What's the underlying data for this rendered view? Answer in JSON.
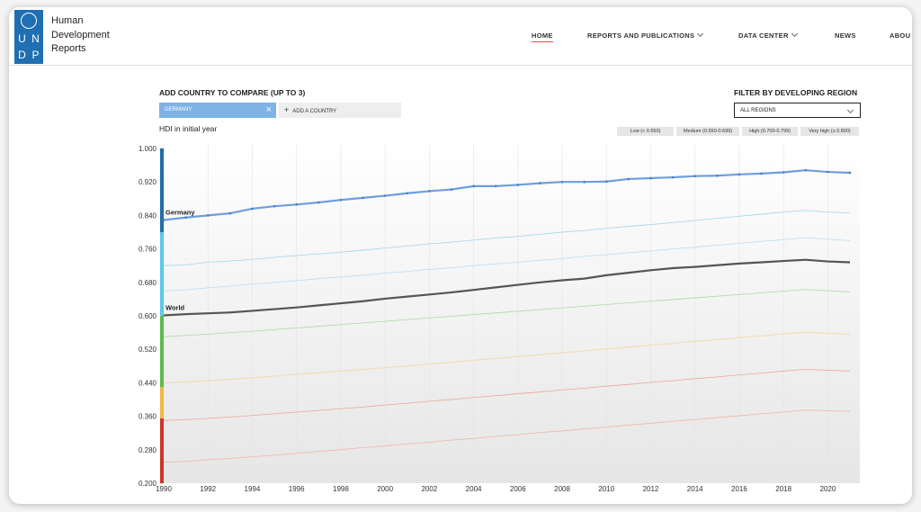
{
  "header": {
    "logo": [
      "U",
      "N",
      "D",
      "P"
    ],
    "title_lines": [
      "Human",
      "Development",
      "Reports"
    ]
  },
  "nav": [
    "HOME",
    "REPORTS AND PUBLICATIONS",
    "DATA CENTER",
    "NEWS",
    "ABOU"
  ],
  "controls": {
    "compare_label": "ADD COUNTRY TO COMPARE (UP TO 3)",
    "selected": "GERMANY",
    "add": "ADD A COUNTRY",
    "filter_label": "FILTER BY DEVELOPING REGION",
    "region": "ALL REGIONS",
    "subtitle": "HDI in initial year"
  },
  "chart_data": {
    "type": "line",
    "x": [
      1990,
      1991,
      1992,
      1993,
      1994,
      1995,
      1996,
      1997,
      1998,
      1999,
      2000,
      2001,
      2002,
      2003,
      2004,
      2005,
      2006,
      2007,
      2008,
      2009,
      2010,
      2011,
      2012,
      2013,
      2014,
      2015,
      2016,
      2017,
      2018,
      2019,
      2020,
      2021
    ],
    "xlim": [
      1990,
      2021
    ],
    "xticks": [
      1990,
      1992,
      1994,
      1996,
      1998,
      2000,
      2002,
      2004,
      2006,
      2008,
      2010,
      2012,
      2014,
      2016,
      2018,
      2020
    ],
    "ylim": [
      0.2,
      1.0
    ],
    "yticks": [
      {
        "value": 0.2,
        "label": "0.200"
      },
      {
        "value": 0.28,
        "label": "0.280"
      },
      {
        "value": 0.36,
        "label": "0.360"
      },
      {
        "value": 0.44,
        "label": "0.440"
      },
      {
        "value": 0.52,
        "label": "0.520"
      },
      {
        "value": 0.6,
        "label": "0.600"
      },
      {
        "value": 0.68,
        "label": "0.680"
      },
      {
        "value": 0.76,
        "label": "0.760"
      },
      {
        "value": 0.84,
        "label": "0.840"
      },
      {
        "value": 0.92,
        "label": "0.920"
      },
      {
        "value": 1.0,
        "label": "1.000"
      }
    ],
    "grid": true,
    "legend": [
      "Low (< 0.550)",
      "Medium (0.550-0.699)",
      "High (0.700-0.799)",
      "Very high (≥ 0.800)"
    ],
    "bands": [
      {
        "from": 0.2,
        "to": 0.355,
        "color": "#c8372d"
      },
      {
        "from": 0.355,
        "to": 0.43,
        "color": "#f2b84b"
      },
      {
        "from": 0.43,
        "to": 0.6,
        "color": "#5dbb4f"
      },
      {
        "from": 0.6,
        "to": 0.8,
        "color": "#5ec8e8"
      },
      {
        "from": 0.8,
        "to": 1.0,
        "color": "#1e6fa8"
      }
    ],
    "series": [
      {
        "color": "#9fd3ea",
        "values": [
          0.72,
          0.722,
          0.728,
          0.731,
          0.735,
          0.74,
          0.744,
          0.748,
          0.752,
          0.757,
          0.762,
          0.767,
          0.772,
          0.776,
          0.781,
          0.786,
          0.79,
          0.795,
          0.8,
          0.804,
          0.809,
          0.814,
          0.818,
          0.823,
          0.828,
          0.833,
          0.838,
          0.843,
          0.848,
          0.852,
          0.848,
          0.846
        ]
      },
      {
        "color": "#b5dcef",
        "values": [
          0.66,
          0.662,
          0.667,
          0.671,
          0.676,
          0.68,
          0.684,
          0.689,
          0.693,
          0.697,
          0.702,
          0.706,
          0.711,
          0.715,
          0.72,
          0.724,
          0.728,
          0.733,
          0.737,
          0.742,
          0.746,
          0.751,
          0.755,
          0.76,
          0.764,
          0.769,
          0.773,
          0.778,
          0.782,
          0.787,
          0.783,
          0.78
        ]
      },
      {
        "color": "#a8d8a0",
        "values": [
          0.55,
          0.553,
          0.556,
          0.56,
          0.563,
          0.567,
          0.571,
          0.575,
          0.579,
          0.583,
          0.587,
          0.591,
          0.595,
          0.599,
          0.603,
          0.607,
          0.611,
          0.615,
          0.619,
          0.623,
          0.627,
          0.631,
          0.635,
          0.639,
          0.643,
          0.647,
          0.651,
          0.655,
          0.659,
          0.663,
          0.66,
          0.657
        ]
      },
      {
        "color": "#f2d49a",
        "values": [
          0.44,
          0.442,
          0.445,
          0.448,
          0.452,
          0.456,
          0.46,
          0.464,
          0.468,
          0.472,
          0.476,
          0.48,
          0.485,
          0.489,
          0.494,
          0.498,
          0.503,
          0.507,
          0.512,
          0.516,
          0.521,
          0.525,
          0.53,
          0.534,
          0.539,
          0.543,
          0.548,
          0.552,
          0.557,
          0.561,
          0.558,
          0.556
        ]
      },
      {
        "color": "#eca39a",
        "values": [
          0.35,
          0.352,
          0.355,
          0.358,
          0.362,
          0.366,
          0.37,
          0.374,
          0.378,
          0.382,
          0.387,
          0.391,
          0.396,
          0.4,
          0.405,
          0.409,
          0.414,
          0.418,
          0.423,
          0.427,
          0.432,
          0.436,
          0.441,
          0.445,
          0.45,
          0.454,
          0.459,
          0.463,
          0.468,
          0.472,
          0.47,
          0.468
        ]
      },
      {
        "color": "#f0b3aa",
        "values": [
          0.25,
          0.252,
          0.256,
          0.259,
          0.263,
          0.267,
          0.271,
          0.276,
          0.28,
          0.285,
          0.289,
          0.294,
          0.298,
          0.303,
          0.307,
          0.312,
          0.316,
          0.321,
          0.325,
          0.33,
          0.334,
          0.339,
          0.343,
          0.348,
          0.352,
          0.357,
          0.361,
          0.366,
          0.37,
          0.375,
          0.373,
          0.372
        ]
      },
      {
        "name": "World",
        "color": "#555555",
        "values": [
          0.601,
          0.604,
          0.606,
          0.608,
          0.612,
          0.616,
          0.62,
          0.625,
          0.63,
          0.635,
          0.641,
          0.646,
          0.651,
          0.656,
          0.662,
          0.668,
          0.674,
          0.68,
          0.685,
          0.689,
          0.697,
          0.703,
          0.709,
          0.714,
          0.717,
          0.721,
          0.725,
          0.728,
          0.731,
          0.734,
          0.73,
          0.728
        ]
      },
      {
        "name": "Germany",
        "color": "#6d9fdc",
        "values": [
          0.829,
          0.835,
          0.84,
          0.845,
          0.856,
          0.862,
          0.866,
          0.871,
          0.877,
          0.882,
          0.887,
          0.893,
          0.898,
          0.902,
          0.91,
          0.91,
          0.913,
          0.917,
          0.92,
          0.92,
          0.921,
          0.927,
          0.929,
          0.931,
          0.934,
          0.935,
          0.938,
          0.94,
          0.943,
          0.948,
          0.944,
          0.942
        ]
      }
    ]
  }
}
